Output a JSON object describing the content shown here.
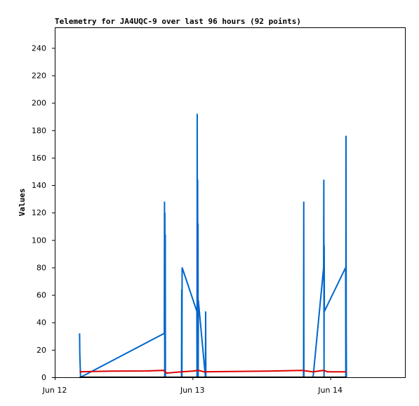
{
  "chart_data": {
    "type": "line",
    "title": "Telemetry for JA4UQC-9 over last 96 hours (92 points)",
    "xlabel": "",
    "ylabel": "Values",
    "x_range": [
      "2024-06-12 00:00",
      "2024-06-14 13:00"
    ],
    "ylim": [
      0,
      255
    ],
    "y_ticks": [
      0,
      20,
      40,
      60,
      80,
      100,
      120,
      140,
      160,
      180,
      200,
      220,
      240
    ],
    "x_ticks": [
      {
        "at": "2024-06-12 00:00",
        "label": "Jun 12"
      },
      {
        "at": "2024-06-13 00:00",
        "label": "Jun 13"
      },
      {
        "at": "2024-06-14 00:00",
        "label": "Jun 14"
      }
    ],
    "grid": false,
    "legend": "none",
    "series": [
      {
        "color": "#0066cc",
        "points": [
          [
            "2024-06-12 04:20",
            32
          ],
          [
            "2024-06-12 04:22",
            17
          ],
          [
            "2024-06-12 04:30",
            0
          ],
          [
            "2024-06-12 19:05",
            32
          ],
          [
            "2024-06-12 19:07",
            128
          ],
          [
            "2024-06-12 19:09",
            0
          ],
          [
            "2024-06-12 19:11",
            120
          ],
          [
            "2024-06-12 19:13",
            0
          ],
          [
            "2024-06-12 19:15",
            104
          ],
          [
            "2024-06-12 19:17",
            0
          ],
          [
            "2024-06-12 22:05",
            0
          ],
          [
            "2024-06-12 22:07",
            64
          ],
          [
            "2024-06-12 22:09",
            0
          ],
          [
            "2024-06-12 22:11",
            80
          ],
          [
            "2024-06-13 00:45",
            48
          ],
          [
            "2024-06-13 00:47",
            0
          ],
          [
            "2024-06-13 00:49",
            192
          ],
          [
            "2024-06-13 00:51",
            0
          ],
          [
            "2024-06-13 00:53",
            144
          ],
          [
            "2024-06-13 00:55",
            0
          ],
          [
            "2024-06-13 00:57",
            112
          ],
          [
            "2024-06-13 00:59",
            0
          ],
          [
            "2024-06-13 01:01",
            56
          ],
          [
            "2024-06-13 02:15",
            0
          ],
          [
            "2024-06-13 02:17",
            48
          ],
          [
            "2024-06-13 02:19",
            0
          ],
          [
            "2024-06-13 19:20",
            0
          ],
          [
            "2024-06-13 19:22",
            128
          ],
          [
            "2024-06-13 19:24",
            0
          ],
          [
            "2024-06-13 21:00",
            0
          ],
          [
            "2024-06-13 22:50",
            80
          ],
          [
            "2024-06-13 22:52",
            144
          ],
          [
            "2024-06-13 22:54",
            0
          ],
          [
            "2024-06-13 22:56",
            96
          ],
          [
            "2024-06-13 22:58",
            48
          ],
          [
            "2024-06-14 02:40",
            80
          ],
          [
            "2024-06-14 02:42",
            0
          ],
          [
            "2024-06-14 02:44",
            176
          ],
          [
            "2024-06-14 02:46",
            32
          ],
          [
            "2024-06-14 02:48",
            0
          ]
        ]
      },
      {
        "color": "#dd0000",
        "points": [
          [
            "2024-06-12 04:20",
            4
          ],
          [
            "2024-06-12 10:00",
            4.5
          ],
          [
            "2024-06-12 16:00",
            4.6
          ],
          [
            "2024-06-12 19:00",
            5
          ],
          [
            "2024-06-12 19:30",
            3
          ],
          [
            "2024-06-12 22:00",
            4
          ],
          [
            "2024-06-13 00:00",
            4.5
          ],
          [
            "2024-06-13 01:00",
            5
          ],
          [
            "2024-06-13 02:00",
            4
          ],
          [
            "2024-06-13 07:00",
            4.2
          ],
          [
            "2024-06-13 13:00",
            4.5
          ],
          [
            "2024-06-13 19:00",
            5
          ],
          [
            "2024-06-13 21:00",
            4
          ],
          [
            "2024-06-13 22:50",
            5
          ],
          [
            "2024-06-13 23:30",
            4
          ],
          [
            "2024-06-14 02:48",
            4
          ]
        ]
      },
      {
        "color": "#000000",
        "points": [
          [
            "2024-06-12 04:20",
            0
          ],
          [
            "2024-06-14 02:48",
            0
          ]
        ]
      }
    ]
  }
}
